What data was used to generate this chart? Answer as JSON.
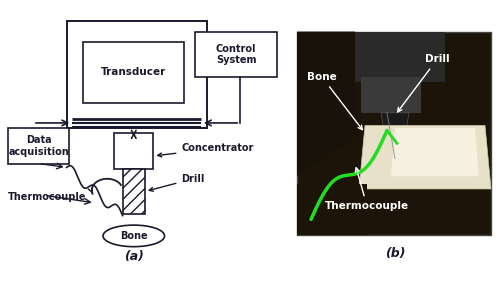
{
  "bg_color": "#ffffff",
  "text_color": "#1a1a2e",
  "label_a": "(a)",
  "label_b": "(b)",
  "transducer_label": "Transducer",
  "control_label": "Control\nSystem",
  "data_acq_label": "Data\nacquisition",
  "bone_label": "Bone",
  "concentrator_label": "Concentrator",
  "drill_label": "Drill",
  "thermocouple_label": "Thermocouple",
  "photo_bone_label": "Bone",
  "photo_drill_label": "Drill",
  "photo_thermocouple_label": "Thermocouple",
  "font_size_labels": 7.0,
  "font_size_caption": 9,
  "font_size_box": 7.5
}
